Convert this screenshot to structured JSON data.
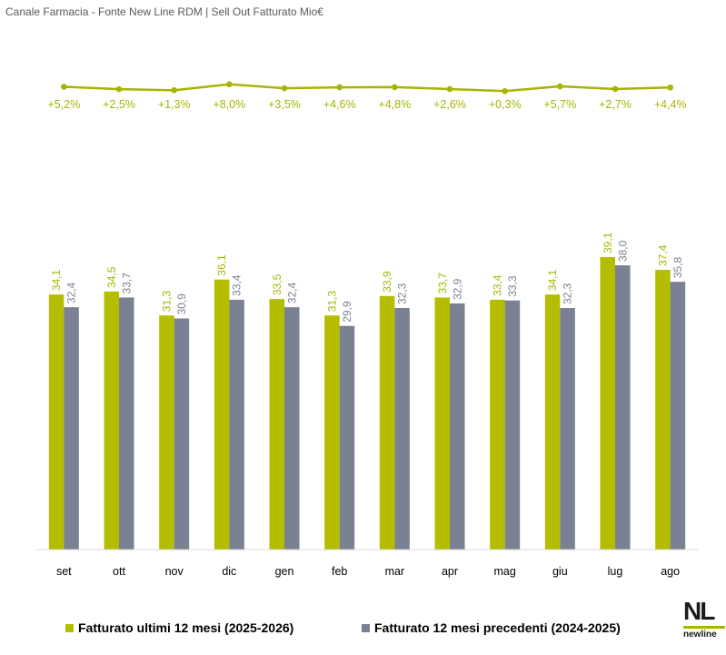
{
  "title": "Canale Farmacia - Fonte New Line RDM | Sell Out Fatturato Mio€",
  "colors": {
    "current": "#b5bd00",
    "previous": "#7a8192",
    "growth": "#a8b400",
    "axis": "#d9d9d9"
  },
  "chart_data": {
    "type": "bar",
    "title": "Canale Farmacia - Fonte New Line RDM | Sell Out Fatturato Mio€",
    "categories": [
      "set",
      "ott",
      "nov",
      "dic",
      "gen",
      "feb",
      "mar",
      "apr",
      "mag",
      "giu",
      "lug",
      "ago"
    ],
    "series": [
      {
        "name": "Fatturato ultimi 12 mesi (2025-2026)",
        "values": [
          34.1,
          34.5,
          31.3,
          36.1,
          33.5,
          31.3,
          33.9,
          33.7,
          33.4,
          34.1,
          39.1,
          37.4
        ],
        "labels": [
          "34,1",
          "34,5",
          "31,3",
          "36,1",
          "33,5",
          "31,3",
          "33,9",
          "33,7",
          "33,4",
          "34,1",
          "39,1",
          "37,4"
        ]
      },
      {
        "name": "Fatturato 12 mesi precedenti (2024-2025)",
        "values": [
          32.4,
          33.7,
          30.9,
          33.4,
          32.4,
          29.9,
          32.3,
          32.9,
          33.3,
          32.3,
          38.0,
          35.8
        ],
        "labels": [
          "32,4",
          "33,7",
          "30,9",
          "33,4",
          "32,4",
          "29,9",
          "32,3",
          "32,9",
          "33,3",
          "32,3",
          "38,0",
          "35,8"
        ]
      }
    ],
    "growth": {
      "type": "line",
      "values": [
        5.2,
        2.5,
        1.3,
        8.0,
        3.5,
        4.6,
        4.8,
        2.6,
        0.3,
        5.7,
        2.7,
        4.4
      ],
      "labels": [
        "+5,2%",
        "+2,5%",
        "+1,3%",
        "+8,0%",
        "+3,5%",
        "+4,6%",
        "+4,8%",
        "+2,6%",
        "+0,3%",
        "+5,7%",
        "+2,7%",
        "+4,4%"
      ]
    },
    "ylim": [
      0,
      42
    ],
    "grid": false,
    "legend_position": "bottom"
  },
  "legend": [
    {
      "label": "Fatturato ultimi 12 mesi (2025-2026)"
    },
    {
      "label": "Fatturato 12 mesi precedenti (2024-2025)"
    }
  ],
  "logo": {
    "mark": "NL",
    "word": "newline"
  }
}
